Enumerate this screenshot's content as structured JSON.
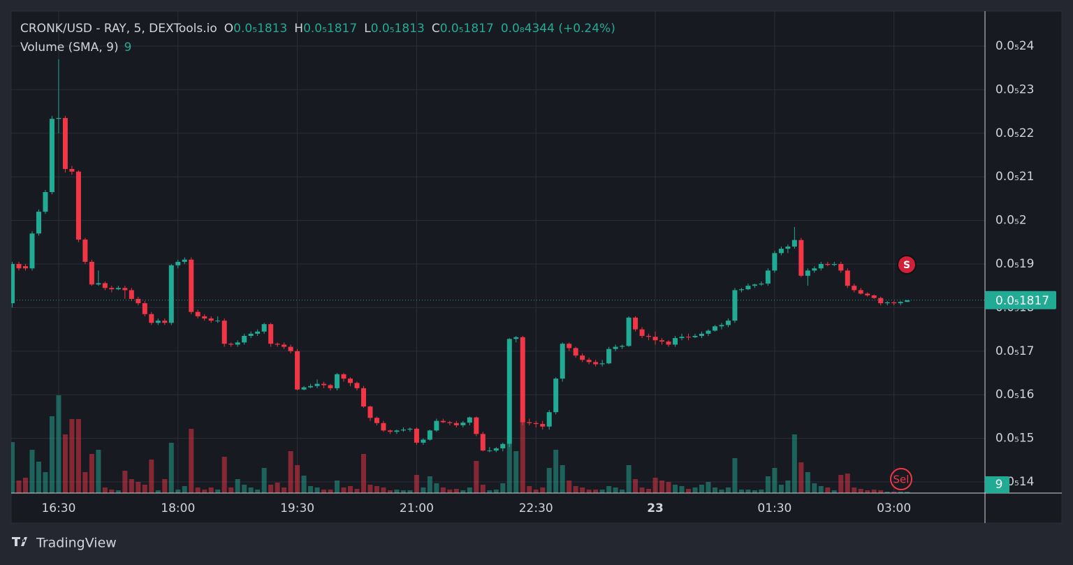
{
  "chart_data": {
    "type": "candlestick",
    "title": "CRONK/USD - RAY, 5, DEXTools.io",
    "ohlc_legend": [
      {
        "key": "O",
        "label": "0.0₅1813"
      },
      {
        "key": "H",
        "label": "0.0₅1817"
      },
      {
        "key": "L",
        "label": "0.0₅1813"
      },
      {
        "key": "C",
        "label": "0.0₅1817"
      }
    ],
    "change": "0.0₈4344 (+0.24%)",
    "volume_title": "Volume (SMA, 9)",
    "last_price_label": "0.0₅1817",
    "markers": [
      {
        "text": "S"
      },
      {
        "text": "Sel"
      }
    ],
    "brand": "TradingView",
    "up_color": "#22ab94",
    "down_color": "#f23645",
    "grid": true,
    "xlim": [
      -0.16,
      146.73
    ],
    "xticks": [
      {
        "value": 7,
        "label": "16:30"
      },
      {
        "value": 25,
        "label": "18:00"
      },
      {
        "value": 43,
        "label": "19:30"
      },
      {
        "value": 61,
        "label": "21:00"
      },
      {
        "value": 79,
        "label": "22:30"
      },
      {
        "value": 97,
        "label": "23"
      },
      {
        "value": 115,
        "label": "01:30"
      },
      {
        "value": 133,
        "label": "03:00"
      }
    ],
    "ylim": [
      1.3744e-06,
      2.4801e-06
    ],
    "yticks": [
      {
        "value": 1.4e-06,
        "label": "0.0₅14"
      },
      {
        "value": 1.5e-06,
        "label": "0.0₅15"
      },
      {
        "value": 1.6e-06,
        "label": "0.0₅16"
      },
      {
        "value": 1.7e-06,
        "label": "0.0₅17"
      },
      {
        "value": 1.8e-06,
        "label": "0.0₅18"
      },
      {
        "value": 1.9e-06,
        "label": "0.0₅19"
      },
      {
        "value": 2e-06,
        "label": "0.0₅2"
      },
      {
        "value": 2.1e-06,
        "label": "0.0₅21"
      },
      {
        "value": 2.2e-06,
        "label": "0.0₅22"
      },
      {
        "value": 2.3e-06,
        "label": "0.0₅23"
      },
      {
        "value": 2.4e-06,
        "label": "0.0₅24"
      }
    ],
    "volume_ylim": [
      0,
      3450
    ],
    "open": [
      1.81e-06,
      1.9e-06,
      1.895e-06,
      1.89e-06,
      1.97e-06,
      2.02e-06,
      2.065e-06,
      2.233e-06,
      2.235e-06,
      2.118e-06,
      2.112e-06,
      1.956e-06,
      1.905e-06,
      1.853e-06,
      1.856e-06,
      1.845e-06,
      1.842e-06,
      1.845e-06,
      1.84e-06,
      1.82e-06,
      1.81e-06,
      1.785e-06,
      1.765e-06,
      1.77e-06,
      1.765e-06,
      1.897e-06,
      1.905e-06,
      1.91e-06,
      1.79e-06,
      1.78e-06,
      1.775e-06,
      1.77e-06,
      1.77e-06,
      1.717e-06,
      1.715e-06,
      1.72e-06,
      1.735e-06,
      1.74e-06,
      1.745e-06,
      1.762e-06,
      1.717e-06,
      1.715e-06,
      1.71e-06,
      1.7e-06,
      1.612e-06,
      1.617e-06,
      1.62e-06,
      1.625e-06,
      1.622e-06,
      1.615e-06,
      1.647e-06,
      1.637e-06,
      1.627e-06,
      1.615e-06,
      1.573e-06,
      1.547e-06,
      1.535e-06,
      1.518e-06,
      1.515e-06,
      1.518e-06,
      1.52e-06,
      1.522e-06,
      1.49e-06,
      1.497e-06,
      1.518e-06,
      1.54e-06,
      1.537e-06,
      1.535e-06,
      1.53e-06,
      1.536e-06,
      1.548e-06,
      1.51e-06,
      1.472e-06,
      1.472e-06,
      1.477e-06,
      1.487e-06,
      1.728e-06,
      1.732e-06,
      1.537e-06,
      1.535e-06,
      1.533e-06,
      1.527e-06,
      1.56e-06,
      1.637e-06,
      1.717e-06,
      1.707e-06,
      1.69e-06,
      1.68e-06,
      1.675e-06,
      1.67e-06,
      1.672e-06,
      1.705e-06,
      1.71e-06,
      1.712e-06,
      1.777e-06,
      1.75e-06,
      1.735e-06,
      1.733e-06,
      1.725e-06,
      1.722e-06,
      1.715e-06,
      1.73e-06,
      1.733e-06,
      1.732e-06,
      1.735e-06,
      1.74e-06,
      1.747e-06,
      1.757e-06,
      1.76e-06,
      1.77e-06,
      1.84e-06,
      1.842e-06,
      1.85e-06,
      1.853e-06,
      1.855e-06,
      1.885e-06,
      1.925e-06,
      1.935e-06,
      1.94e-06,
      1.955e-06,
      1.873e-06,
      1.885e-06,
      1.89e-06,
      1.9e-06,
      1.898e-06,
      1.9e-06,
      1.885e-06,
      1.85e-06,
      1.84e-06,
      1.832e-06,
      1.828e-06,
      1.822e-06,
      1.81e-06,
      1.812e-06,
      1.81e-06,
      1.813e-06
    ],
    "high": [
      1.905e-06,
      1.905e-06,
      1.9e-06,
      1.975e-06,
      2.025e-06,
      2.07e-06,
      2.24e-06,
      2.37e-06,
      2.24e-06,
      2.125e-06,
      2.115e-06,
      1.96e-06,
      1.91e-06,
      1.885e-06,
      1.86e-06,
      1.85e-06,
      1.85e-06,
      1.85e-06,
      1.845e-06,
      1.825e-06,
      1.815e-06,
      1.79e-06,
      1.775e-06,
      1.775e-06,
      1.9e-06,
      1.91e-06,
      1.915e-06,
      1.915e-06,
      1.795e-06,
      1.785e-06,
      1.78e-06,
      1.78e-06,
      1.775e-06,
      1.72e-06,
      1.725e-06,
      1.74e-06,
      1.745e-06,
      1.75e-06,
      1.765e-06,
      1.765e-06,
      1.72e-06,
      1.72e-06,
      1.715e-06,
      1.705e-06,
      1.62e-06,
      1.625e-06,
      1.635e-06,
      1.63e-06,
      1.625e-06,
      1.65e-06,
      1.65e-06,
      1.64e-06,
      1.63e-06,
      1.62e-06,
      1.575e-06,
      1.55e-06,
      1.54e-06,
      1.52e-06,
      1.52e-06,
      1.525e-06,
      1.525e-06,
      1.525e-06,
      1.5e-06,
      1.52e-06,
      1.545e-06,
      1.545e-06,
      1.54e-06,
      1.54e-06,
      1.54e-06,
      1.55e-06,
      1.55e-06,
      1.515e-06,
      1.48e-06,
      1.48e-06,
      1.49e-06,
      1.73e-06,
      1.735e-06,
      1.735e-06,
      1.545e-06,
      1.54e-06,
      1.54e-06,
      1.565e-06,
      1.64e-06,
      1.72e-06,
      1.72e-06,
      1.71e-06,
      1.695e-06,
      1.685e-06,
      1.68e-06,
      1.68e-06,
      1.71e-06,
      1.715e-06,
      1.715e-06,
      1.78e-06,
      1.78e-06,
      1.755e-06,
      1.74e-06,
      1.745e-06,
      1.73e-06,
      1.725e-06,
      1.735e-06,
      1.74e-06,
      1.74e-06,
      1.74e-06,
      1.745e-06,
      1.75e-06,
      1.76e-06,
      1.765e-06,
      1.775e-06,
      1.845e-06,
      1.845e-06,
      1.855e-06,
      1.855e-06,
      1.86e-06,
      1.89e-06,
      1.93e-06,
      1.94e-06,
      1.945e-06,
      1.985e-06,
      1.96e-06,
      1.89e-06,
      1.895e-06,
      1.905e-06,
      1.905e-06,
      1.905e-06,
      1.905e-06,
      1.89e-06,
      1.855e-06,
      1.845e-06,
      1.835e-06,
      1.83e-06,
      1.825e-06,
      1.815e-06,
      1.815e-06,
      1.815e-06,
      1.817e-06
    ],
    "low": [
      1.8e-06,
      1.885e-06,
      1.885e-06,
      1.885e-06,
      1.965e-06,
      2.015e-06,
      2.06e-06,
      2.2e-06,
      2.11e-06,
      2.105e-06,
      1.95e-06,
      1.9e-06,
      1.85e-06,
      1.85e-06,
      1.84e-06,
      1.835e-06,
      1.84e-06,
      1.82e-06,
      1.815e-06,
      1.805e-06,
      1.78e-06,
      1.76e-06,
      1.76e-06,
      1.76e-06,
      1.76e-06,
      1.89e-06,
      1.9e-06,
      1.785e-06,
      1.775e-06,
      1.77e-06,
      1.765e-06,
      1.765e-06,
      1.71e-06,
      1.71e-06,
      1.71e-06,
      1.715e-06,
      1.73e-06,
      1.735e-06,
      1.74e-06,
      1.71e-06,
      1.71e-06,
      1.705e-06,
      1.695e-06,
      1.61e-06,
      1.61e-06,
      1.615e-06,
      1.615e-06,
      1.615e-06,
      1.61e-06,
      1.61e-06,
      1.63e-06,
      1.62e-06,
      1.61e-06,
      1.57e-06,
      1.54e-06,
      1.53e-06,
      1.515e-06,
      1.51e-06,
      1.51e-06,
      1.515e-06,
      1.515e-06,
      1.485e-06,
      1.485e-06,
      1.495e-06,
      1.515e-06,
      1.535e-06,
      1.53e-06,
      1.525e-06,
      1.525e-06,
      1.53e-06,
      1.505e-06,
      1.47e-06,
      1.468e-06,
      1.468e-06,
      1.47e-06,
      1.48e-06,
      1.72e-06,
      1.53e-06,
      1.53e-06,
      1.525e-06,
      1.52e-06,
      1.52e-06,
      1.555e-06,
      1.63e-06,
      1.7e-06,
      1.685e-06,
      1.675e-06,
      1.67e-06,
      1.665e-06,
      1.665e-06,
      1.67e-06,
      1.7e-06,
      1.705e-06,
      1.71e-06,
      1.745e-06,
      1.73e-06,
      1.725e-06,
      1.715e-06,
      1.715e-06,
      1.71e-06,
      1.71e-06,
      1.725e-06,
      1.725e-06,
      1.73e-06,
      1.73e-06,
      1.735e-06,
      1.745e-06,
      1.75e-06,
      1.755e-06,
      1.765e-06,
      1.835e-06,
      1.84e-06,
      1.845e-06,
      1.85e-06,
      1.85e-06,
      1.88e-06,
      1.92e-06,
      1.925e-06,
      1.935e-06,
      1.87e-06,
      1.85e-06,
      1.88e-06,
      1.885e-06,
      1.895e-06,
      1.895e-06,
      1.88e-06,
      1.845e-06,
      1.835e-06,
      1.83e-06,
      1.825e-06,
      1.82e-06,
      1.805e-06,
      1.805e-06,
      1.805e-06,
      1.805e-06,
      1.813e-06
    ],
    "close": [
      1.9e-06,
      1.89e-06,
      1.89e-06,
      1.97e-06,
      2.02e-06,
      2.065e-06,
      2.233e-06,
      2.235e-06,
      2.118e-06,
      2.112e-06,
      1.956e-06,
      1.905e-06,
      1.853e-06,
      1.856e-06,
      1.845e-06,
      1.842e-06,
      1.845e-06,
      1.84e-06,
      1.82e-06,
      1.81e-06,
      1.785e-06,
      1.765e-06,
      1.77e-06,
      1.765e-06,
      1.897e-06,
      1.905e-06,
      1.91e-06,
      1.79e-06,
      1.78e-06,
      1.775e-06,
      1.77e-06,
      1.77e-06,
      1.717e-06,
      1.715e-06,
      1.72e-06,
      1.735e-06,
      1.74e-06,
      1.745e-06,
      1.762e-06,
      1.717e-06,
      1.715e-06,
      1.71e-06,
      1.7e-06,
      1.612e-06,
      1.617e-06,
      1.62e-06,
      1.625e-06,
      1.622e-06,
      1.615e-06,
      1.647e-06,
      1.637e-06,
      1.627e-06,
      1.615e-06,
      1.573e-06,
      1.547e-06,
      1.535e-06,
      1.518e-06,
      1.515e-06,
      1.518e-06,
      1.52e-06,
      1.522e-06,
      1.49e-06,
      1.497e-06,
      1.518e-06,
      1.54e-06,
      1.537e-06,
      1.535e-06,
      1.53e-06,
      1.536e-06,
      1.548e-06,
      1.51e-06,
      1.472e-06,
      1.472e-06,
      1.477e-06,
      1.487e-06,
      1.728e-06,
      1.732e-06,
      1.537e-06,
      1.535e-06,
      1.533e-06,
      1.527e-06,
      1.56e-06,
      1.637e-06,
      1.717e-06,
      1.707e-06,
      1.69e-06,
      1.68e-06,
      1.675e-06,
      1.67e-06,
      1.672e-06,
      1.705e-06,
      1.71e-06,
      1.712e-06,
      1.777e-06,
      1.75e-06,
      1.735e-06,
      1.733e-06,
      1.725e-06,
      1.722e-06,
      1.715e-06,
      1.73e-06,
      1.733e-06,
      1.732e-06,
      1.735e-06,
      1.74e-06,
      1.747e-06,
      1.757e-06,
      1.76e-06,
      1.77e-06,
      1.84e-06,
      1.842e-06,
      1.85e-06,
      1.853e-06,
      1.855e-06,
      1.885e-06,
      1.925e-06,
      1.935e-06,
      1.94e-06,
      1.955e-06,
      1.873e-06,
      1.885e-06,
      1.89e-06,
      1.9e-06,
      1.898e-06,
      1.9e-06,
      1.885e-06,
      1.85e-06,
      1.84e-06,
      1.832e-06,
      1.828e-06,
      1.822e-06,
      1.81e-06,
      1.812e-06,
      1.81e-06,
      1.813e-06,
      1.817e-06
    ],
    "volume": [
      365,
      90,
      110,
      310,
      225,
      150,
      550,
      700,
      420,
      530,
      530,
      150,
      280,
      310,
      40,
      25,
      20,
      160,
      100,
      80,
      60,
      240,
      20,
      100,
      360,
      25,
      50,
      460,
      40,
      25,
      40,
      25,
      260,
      40,
      100,
      60,
      40,
      25,
      180,
      60,
      75,
      40,
      300,
      200,
      125,
      50,
      40,
      25,
      25,
      90,
      40,
      50,
      30,
      280,
      60,
      50,
      40,
      20,
      25,
      20,
      20,
      130,
      40,
      120,
      70,
      40,
      25,
      30,
      20,
      40,
      230,
      60,
      20,
      25,
      70,
      350,
      300,
      530,
      50,
      25,
      40,
      180,
      310,
      200,
      90,
      50,
      40,
      25,
      25,
      25,
      50,
      40,
      25,
      200,
      100,
      40,
      30,
      110,
      90,
      80,
      60,
      50,
      30,
      40,
      60,
      80,
      40,
      25,
      40,
      250,
      25,
      25,
      20,
      25,
      120,
      180,
      60,
      90,
      420,
      220,
      150,
      70,
      50,
      40,
      20,
      130,
      140,
      40,
      30,
      20,
      25,
      20,
      10,
      10,
      10,
      9
    ]
  }
}
